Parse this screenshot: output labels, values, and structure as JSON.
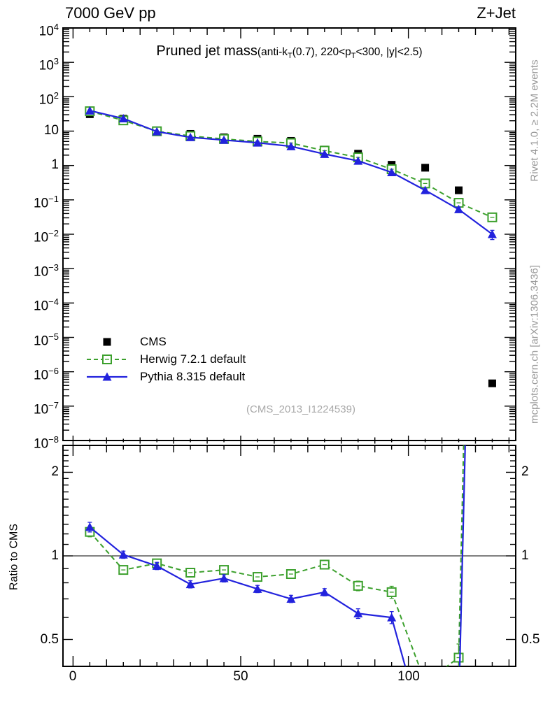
{
  "header": {
    "left": "7000 GeV pp",
    "right": "Z+Jet"
  },
  "side_labels": {
    "top": "Rivet 4.1.0, ≥ 2.2M events",
    "bottom": "mcplots.cern.ch [arXiv:1306.3436]"
  },
  "watermark": "(CMS_2013_I1224539)",
  "colors": {
    "cms": "#000000",
    "herwig": "#3ca02d",
    "pythia": "#2222dd",
    "gray": "#989898"
  },
  "legend": {
    "position": "inside-left",
    "items": [
      {
        "key": "cms",
        "label": "CMS"
      },
      {
        "key": "herwig",
        "label": "Herwig 7.2.1 default"
      },
      {
        "key": "pythia",
        "label": "Pythia 8.315 default"
      }
    ]
  },
  "chart_data": [
    {
      "type": "scatter",
      "panel": "main",
      "title": "Pruned jet mass",
      "subtitle_parts": [
        "(anti-k",
        "T",
        "(0.7), 220<p",
        "T",
        "<300, |y|<2.5)"
      ],
      "grid": false,
      "ylog": true,
      "xlim": [
        -3,
        132
      ],
      "ylim": [
        1e-08,
        10000.0
      ],
      "x": [
        5,
        15,
        25,
        35,
        45,
        55,
        65,
        75,
        85,
        95,
        105,
        115,
        125
      ],
      "series": [
        {
          "name": "CMS",
          "key": "cms",
          "marker": "filled-square",
          "line": "none",
          "values": [
            31,
            23,
            10.5,
            8.3,
            6.6,
            6.0,
            5.2,
            2.9,
            2.2,
            1.05,
            0.86,
            0.19,
            4.6e-07
          ]
        },
        {
          "name": "Herwig 7.2.1 default",
          "key": "herwig",
          "marker": "open-square",
          "line": "dashed",
          "values": [
            37.8,
            20.5,
            9.9,
            7.2,
            5.9,
            5.0,
            4.5,
            2.7,
            1.72,
            0.78,
            0.3,
            0.082,
            0.031
          ],
          "err": [
            0.03,
            0.02,
            0.02,
            0.02,
            0.02,
            0.02,
            0.02,
            0.03,
            0.03,
            0.04,
            0.07,
            0.12,
            0.16
          ]
        },
        {
          "name": "Pythia 8.315 default",
          "key": "pythia",
          "marker": "filled-triangle",
          "line": "solid",
          "values": [
            39.4,
            23.2,
            9.7,
            6.6,
            5.5,
            4.6,
            3.6,
            2.15,
            1.36,
            0.63,
            0.19,
            0.053,
            0.01
          ],
          "err": [
            0.03,
            0.02,
            0.02,
            0.02,
            0.02,
            0.02,
            0.02,
            0.03,
            0.03,
            0.05,
            0.09,
            0.16,
            0.3
          ]
        }
      ],
      "y_ticks": [
        {
          "t": "10",
          "e": "4",
          "v": 10000
        },
        {
          "t": "10",
          "e": "3",
          "v": 1000
        },
        {
          "t": "10",
          "e": "2",
          "v": 100
        },
        {
          "t": "10",
          "e": "",
          "v": 10
        },
        {
          "t": "1",
          "e": "",
          "v": 1
        },
        {
          "t": "10",
          "e": "−1",
          "v": 0.1
        },
        {
          "t": "10",
          "e": "−2",
          "v": 0.01
        },
        {
          "t": "10",
          "e": "−3",
          "v": 0.001
        },
        {
          "t": "10",
          "e": "−4",
          "v": 0.0001
        },
        {
          "t": "10",
          "e": "−5",
          "v": 1e-05
        },
        {
          "t": "10",
          "e": "−6",
          "v": 1e-06
        },
        {
          "t": "10",
          "e": "−7",
          "v": 1e-07
        },
        {
          "t": "10",
          "e": "−8",
          "v": 1e-08
        }
      ],
      "x_ticks": [
        {
          "label": "0",
          "v": 0
        },
        {
          "label": "50",
          "v": 50
        },
        {
          "label": "100",
          "v": 100
        }
      ]
    },
    {
      "type": "line",
      "panel": "ratio",
      "ylabel": "Ratio to CMS",
      "grid": false,
      "ylog": true,
      "ref_line": 1,
      "xlim": [
        -3,
        132
      ],
      "ylim": [
        0.4,
        2.5
      ],
      "x": [
        5,
        15,
        25,
        35,
        45,
        55,
        65,
        75,
        85,
        95,
        105,
        115,
        125
      ],
      "series": [
        {
          "name": "Herwig 7.2.1 default / CMS",
          "key": "herwig",
          "marker": "open-square",
          "line": "dashed",
          "values": [
            1.22,
            0.89,
            0.94,
            0.87,
            0.89,
            0.84,
            0.86,
            0.93,
            0.78,
            0.74,
            0.35,
            0.43,
            67000
          ],
          "err": [
            0.04,
            0.03,
            0.03,
            0.03,
            0.03,
            0.03,
            0.03,
            0.03,
            0.04,
            0.05,
            0.07,
            0.12,
            0.2
          ]
        },
        {
          "name": "Pythia 8.315 default / CMS",
          "key": "pythia",
          "marker": "filled-triangle",
          "line": "solid",
          "values": [
            1.27,
            1.01,
            0.92,
            0.79,
            0.83,
            0.76,
            0.7,
            0.74,
            0.62,
            0.6,
            0.22,
            0.28,
            22000
          ],
          "err": [
            0.04,
            0.03,
            0.03,
            0.03,
            0.03,
            0.03,
            0.03,
            0.03,
            0.04,
            0.05,
            0.09,
            0.16,
            0.3
          ]
        }
      ],
      "y_ticks": [
        {
          "label": "2",
          "v": 2
        },
        {
          "label": "1",
          "v": 1
        },
        {
          "label": "0.5",
          "v": 0.5
        }
      ]
    }
  ]
}
